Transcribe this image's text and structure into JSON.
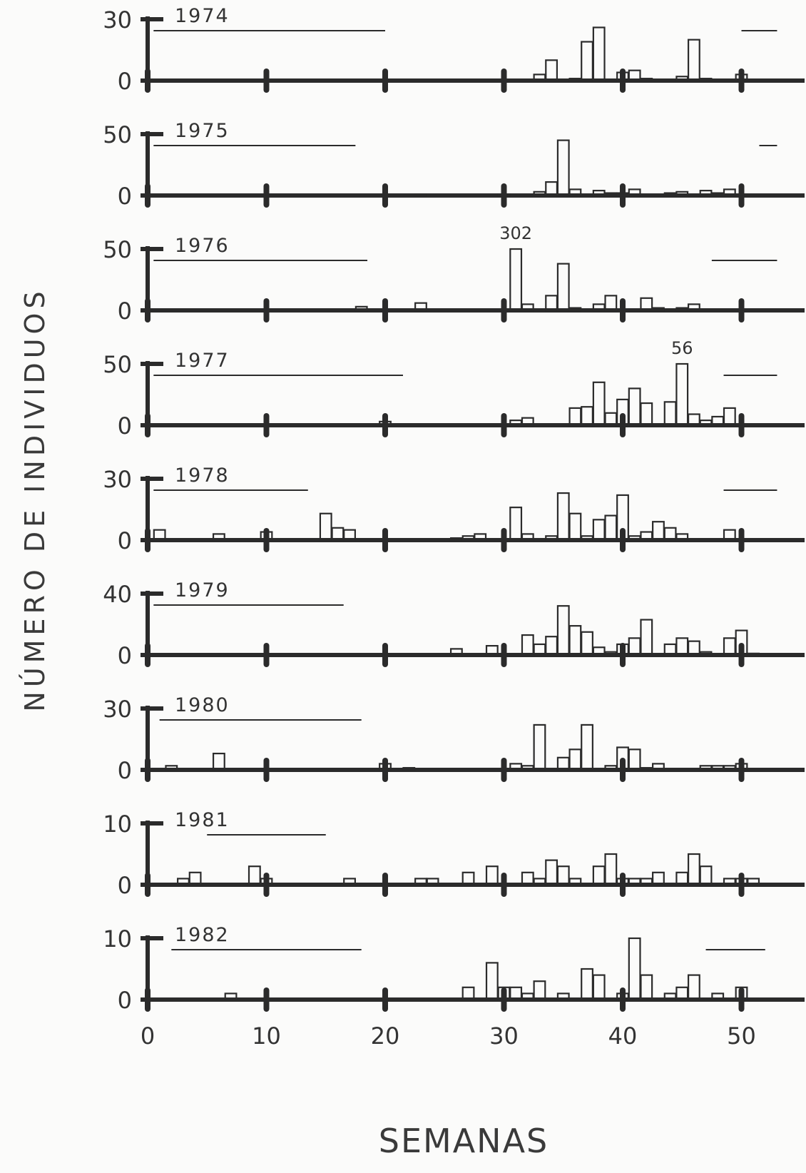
{
  "figure": {
    "ylabel": "NÚMERO DE INDIVIDUOS",
    "xlabel": "SEMANAS"
  },
  "chart_data": {
    "type": "bar",
    "x_ticks": [
      0,
      10,
      20,
      30,
      40,
      50
    ],
    "xlabel": "SEMANAS",
    "ylabel": "NÚMERO DE INDIVIDUOS",
    "xlim": [
      0,
      52
    ],
    "panels": [
      {
        "year": "1974",
        "ymax_label": "30",
        "ymin_label": "0",
        "ymax": 30,
        "periods": [
          [
            0.5,
            20
          ],
          [
            50,
            53
          ]
        ],
        "weeks": [
          33,
          34,
          36,
          37,
          38,
          40,
          41,
          42,
          45,
          46,
          47,
          50
        ],
        "values": [
          3,
          10,
          1,
          19,
          26,
          4,
          5,
          1,
          2,
          20,
          1,
          3
        ],
        "annotations": []
      },
      {
        "year": "1975",
        "ymax_label": "50",
        "ymin_label": "0",
        "ymax": 50,
        "periods": [
          [
            0.5,
            17.5
          ],
          [
            51.5,
            53
          ]
        ],
        "weeks": [
          23,
          30,
          33,
          34,
          35,
          36,
          38,
          39,
          40,
          41,
          44,
          45,
          46,
          47,
          48,
          49
        ],
        "values": [
          1,
          1,
          3,
          11,
          45,
          5,
          4,
          2,
          2,
          5,
          2,
          3,
          1,
          4,
          2,
          5
        ],
        "annotations": []
      },
      {
        "year": "1976",
        "ymax_label": "50",
        "ymin_label": "0",
        "ymax": 50,
        "periods": [
          [
            0.5,
            18.5
          ],
          [
            47.5,
            53
          ]
        ],
        "weeks": [
          18,
          23,
          31,
          32,
          34,
          35,
          36,
          38,
          39,
          41,
          42,
          43,
          45,
          46
        ],
        "values": [
          3,
          6,
          50,
          5,
          12,
          38,
          2,
          5,
          12,
          1,
          10,
          2,
          2,
          5
        ],
        "annotations": [
          {
            "week": 31,
            "text": "302"
          }
        ]
      },
      {
        "year": "1977",
        "ymax_label": "50",
        "ymin_label": "0",
        "ymax": 50,
        "periods": [
          [
            0.5,
            21.5
          ],
          [
            48.5,
            53
          ]
        ],
        "weeks": [
          20,
          31,
          32,
          36,
          37,
          38,
          39,
          40,
          41,
          42,
          44,
          45,
          46,
          47,
          48,
          49
        ],
        "values": [
          3,
          4,
          6,
          14,
          15,
          35,
          10,
          21,
          30,
          18,
          19,
          53,
          9,
          4,
          7,
          14
        ],
        "annotations": [
          {
            "week": 45,
            "text": "56"
          }
        ]
      },
      {
        "year": "1978",
        "ymax_label": "30",
        "ymin_label": "0",
        "ymax": 30,
        "periods": [
          [
            0.5,
            13.5
          ],
          [
            48.5,
            53
          ]
        ],
        "weeks": [
          1,
          6,
          10,
          15,
          16,
          17,
          26,
          27,
          28,
          31,
          32,
          34,
          35,
          36,
          37,
          38,
          39,
          40,
          41,
          42,
          43,
          44,
          45,
          49
        ],
        "values": [
          5,
          3,
          4,
          13,
          6,
          5,
          1,
          2,
          3,
          16,
          3,
          2,
          23,
          13,
          2,
          10,
          12,
          22,
          2,
          4,
          9,
          6,
          3,
          5
        ],
        "annotations": []
      },
      {
        "year": "1979",
        "ymax_label": "40",
        "ymin_label": "0",
        "ymax": 40,
        "periods": [
          [
            0.5,
            16.5
          ]
        ],
        "weeks": [
          26,
          29,
          32,
          33,
          34,
          35,
          36,
          37,
          38,
          39,
          40,
          41,
          42,
          44,
          45,
          46,
          47,
          49,
          50,
          51
        ],
        "values": [
          4,
          6,
          13,
          7,
          12,
          32,
          19,
          15,
          5,
          2,
          7,
          11,
          23,
          7,
          11,
          9,
          2,
          11,
          16,
          1
        ],
        "annotations": []
      },
      {
        "year": "1980",
        "ymax_label": "30",
        "ymin_label": "0",
        "ymax": 30,
        "periods": [
          [
            1,
            18
          ]
        ],
        "weeks": [
          2,
          6,
          20,
          22,
          31,
          32,
          33,
          35,
          36,
          37,
          39,
          40,
          41,
          42,
          43,
          47,
          48,
          49,
          50
        ],
        "values": [
          2,
          8,
          3,
          1,
          3,
          2,
          22,
          6,
          10,
          22,
          2,
          11,
          10,
          1,
          3,
          2,
          2,
          2,
          3
        ],
        "annotations": []
      },
      {
        "year": "1981",
        "ymax_label": "10",
        "ymin_label": "0",
        "ymax": 10,
        "periods": [
          [
            5,
            15
          ]
        ],
        "weeks": [
          3,
          4,
          9,
          10,
          17,
          23,
          24,
          27,
          29,
          32,
          33,
          34,
          35,
          36,
          38,
          39,
          40,
          41,
          42,
          43,
          45,
          46,
          47,
          49,
          50,
          51
        ],
        "values": [
          1,
          2,
          3,
          1,
          1,
          1,
          1,
          2,
          3,
          2,
          1,
          4,
          3,
          1,
          3,
          5,
          1,
          1,
          1,
          2,
          2,
          5,
          3,
          1,
          1,
          1
        ],
        "annotations": []
      },
      {
        "year": "1982",
        "ymax_label": "10",
        "ymin_label": "0",
        "ymax": 10,
        "periods": [
          [
            2,
            18
          ],
          [
            47,
            52
          ]
        ],
        "weeks": [
          7,
          27,
          29,
          30,
          31,
          32,
          33,
          35,
          37,
          38,
          40,
          41,
          42,
          44,
          45,
          46,
          48,
          50
        ],
        "values": [
          1,
          2,
          6,
          2,
          2,
          1,
          3,
          1,
          5,
          4,
          1,
          10,
          4,
          1,
          2,
          4,
          1,
          2
        ],
        "annotations": []
      }
    ]
  }
}
